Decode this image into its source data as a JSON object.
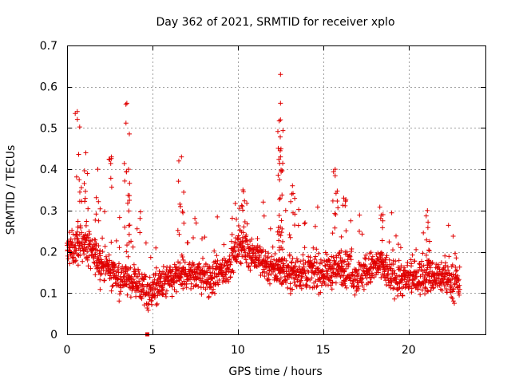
{
  "chart_data": {
    "type": "scatter",
    "title": "Day 362 of 2021, SRMTID for receiver xplo",
    "xlabel": "GPS time / hours",
    "ylabel": "SRMTID / TECUs",
    "xlim": [
      0,
      24.5
    ],
    "ylim": [
      0,
      0.7
    ],
    "xticks": [
      0,
      5,
      10,
      15,
      20
    ],
    "yticks": [
      0,
      0.1,
      0.2,
      0.3,
      0.4,
      0.5,
      0.6,
      0.7
    ],
    "ytick_labels": [
      "0",
      "0.1",
      "0.2",
      "0.3",
      "0.4",
      "0.5",
      "0.6",
      "0.7"
    ],
    "grid": true,
    "marker": "+",
    "color": "#e00000",
    "outlier_marker": "square",
    "outliers": [
      {
        "x": 4.7,
        "y": 0.0
      }
    ],
    "series_profile": {
      "name": "SRMTID",
      "x_start": 0.0,
      "x_end": 23.0,
      "baseline": [
        [
          0,
          0.2
        ],
        [
          1,
          0.22
        ],
        [
          2,
          0.17
        ],
        [
          3,
          0.14
        ],
        [
          4,
          0.13
        ],
        [
          4.8,
          0.1
        ],
        [
          5.5,
          0.12
        ],
        [
          6.5,
          0.14
        ],
        [
          7.5,
          0.15
        ],
        [
          8.5,
          0.13
        ],
        [
          9.5,
          0.17
        ],
        [
          10.2,
          0.22
        ],
        [
          11,
          0.19
        ],
        [
          12,
          0.16
        ],
        [
          13,
          0.15
        ],
        [
          14,
          0.15
        ],
        [
          15,
          0.15
        ],
        [
          16,
          0.16
        ],
        [
          17,
          0.14
        ],
        [
          18.3,
          0.17
        ],
        [
          19,
          0.14
        ],
        [
          20,
          0.13
        ],
        [
          21,
          0.14
        ],
        [
          22,
          0.14
        ],
        [
          23,
          0.12
        ]
      ],
      "peaks": [
        {
          "x": 0.6,
          "y": 0.54
        },
        {
          "x": 1.1,
          "y": 0.44
        },
        {
          "x": 1.8,
          "y": 0.4
        },
        {
          "x": 2.6,
          "y": 0.43
        },
        {
          "x": 3.5,
          "y": 0.56
        },
        {
          "x": 3.6,
          "y": 0.4
        },
        {
          "x": 6.7,
          "y": 0.43
        },
        {
          "x": 10.3,
          "y": 0.35
        },
        {
          "x": 12.5,
          "y": 0.63
        },
        {
          "x": 12.5,
          "y": 0.56
        },
        {
          "x": 12.5,
          "y": 0.52
        },
        {
          "x": 12.5,
          "y": 0.43
        },
        {
          "x": 13.2,
          "y": 0.36
        },
        {
          "x": 15.7,
          "y": 0.4
        },
        {
          "x": 16.2,
          "y": 0.33
        },
        {
          "x": 18.5,
          "y": 0.29
        },
        {
          "x": 21.1,
          "y": 0.3
        }
      ]
    }
  }
}
